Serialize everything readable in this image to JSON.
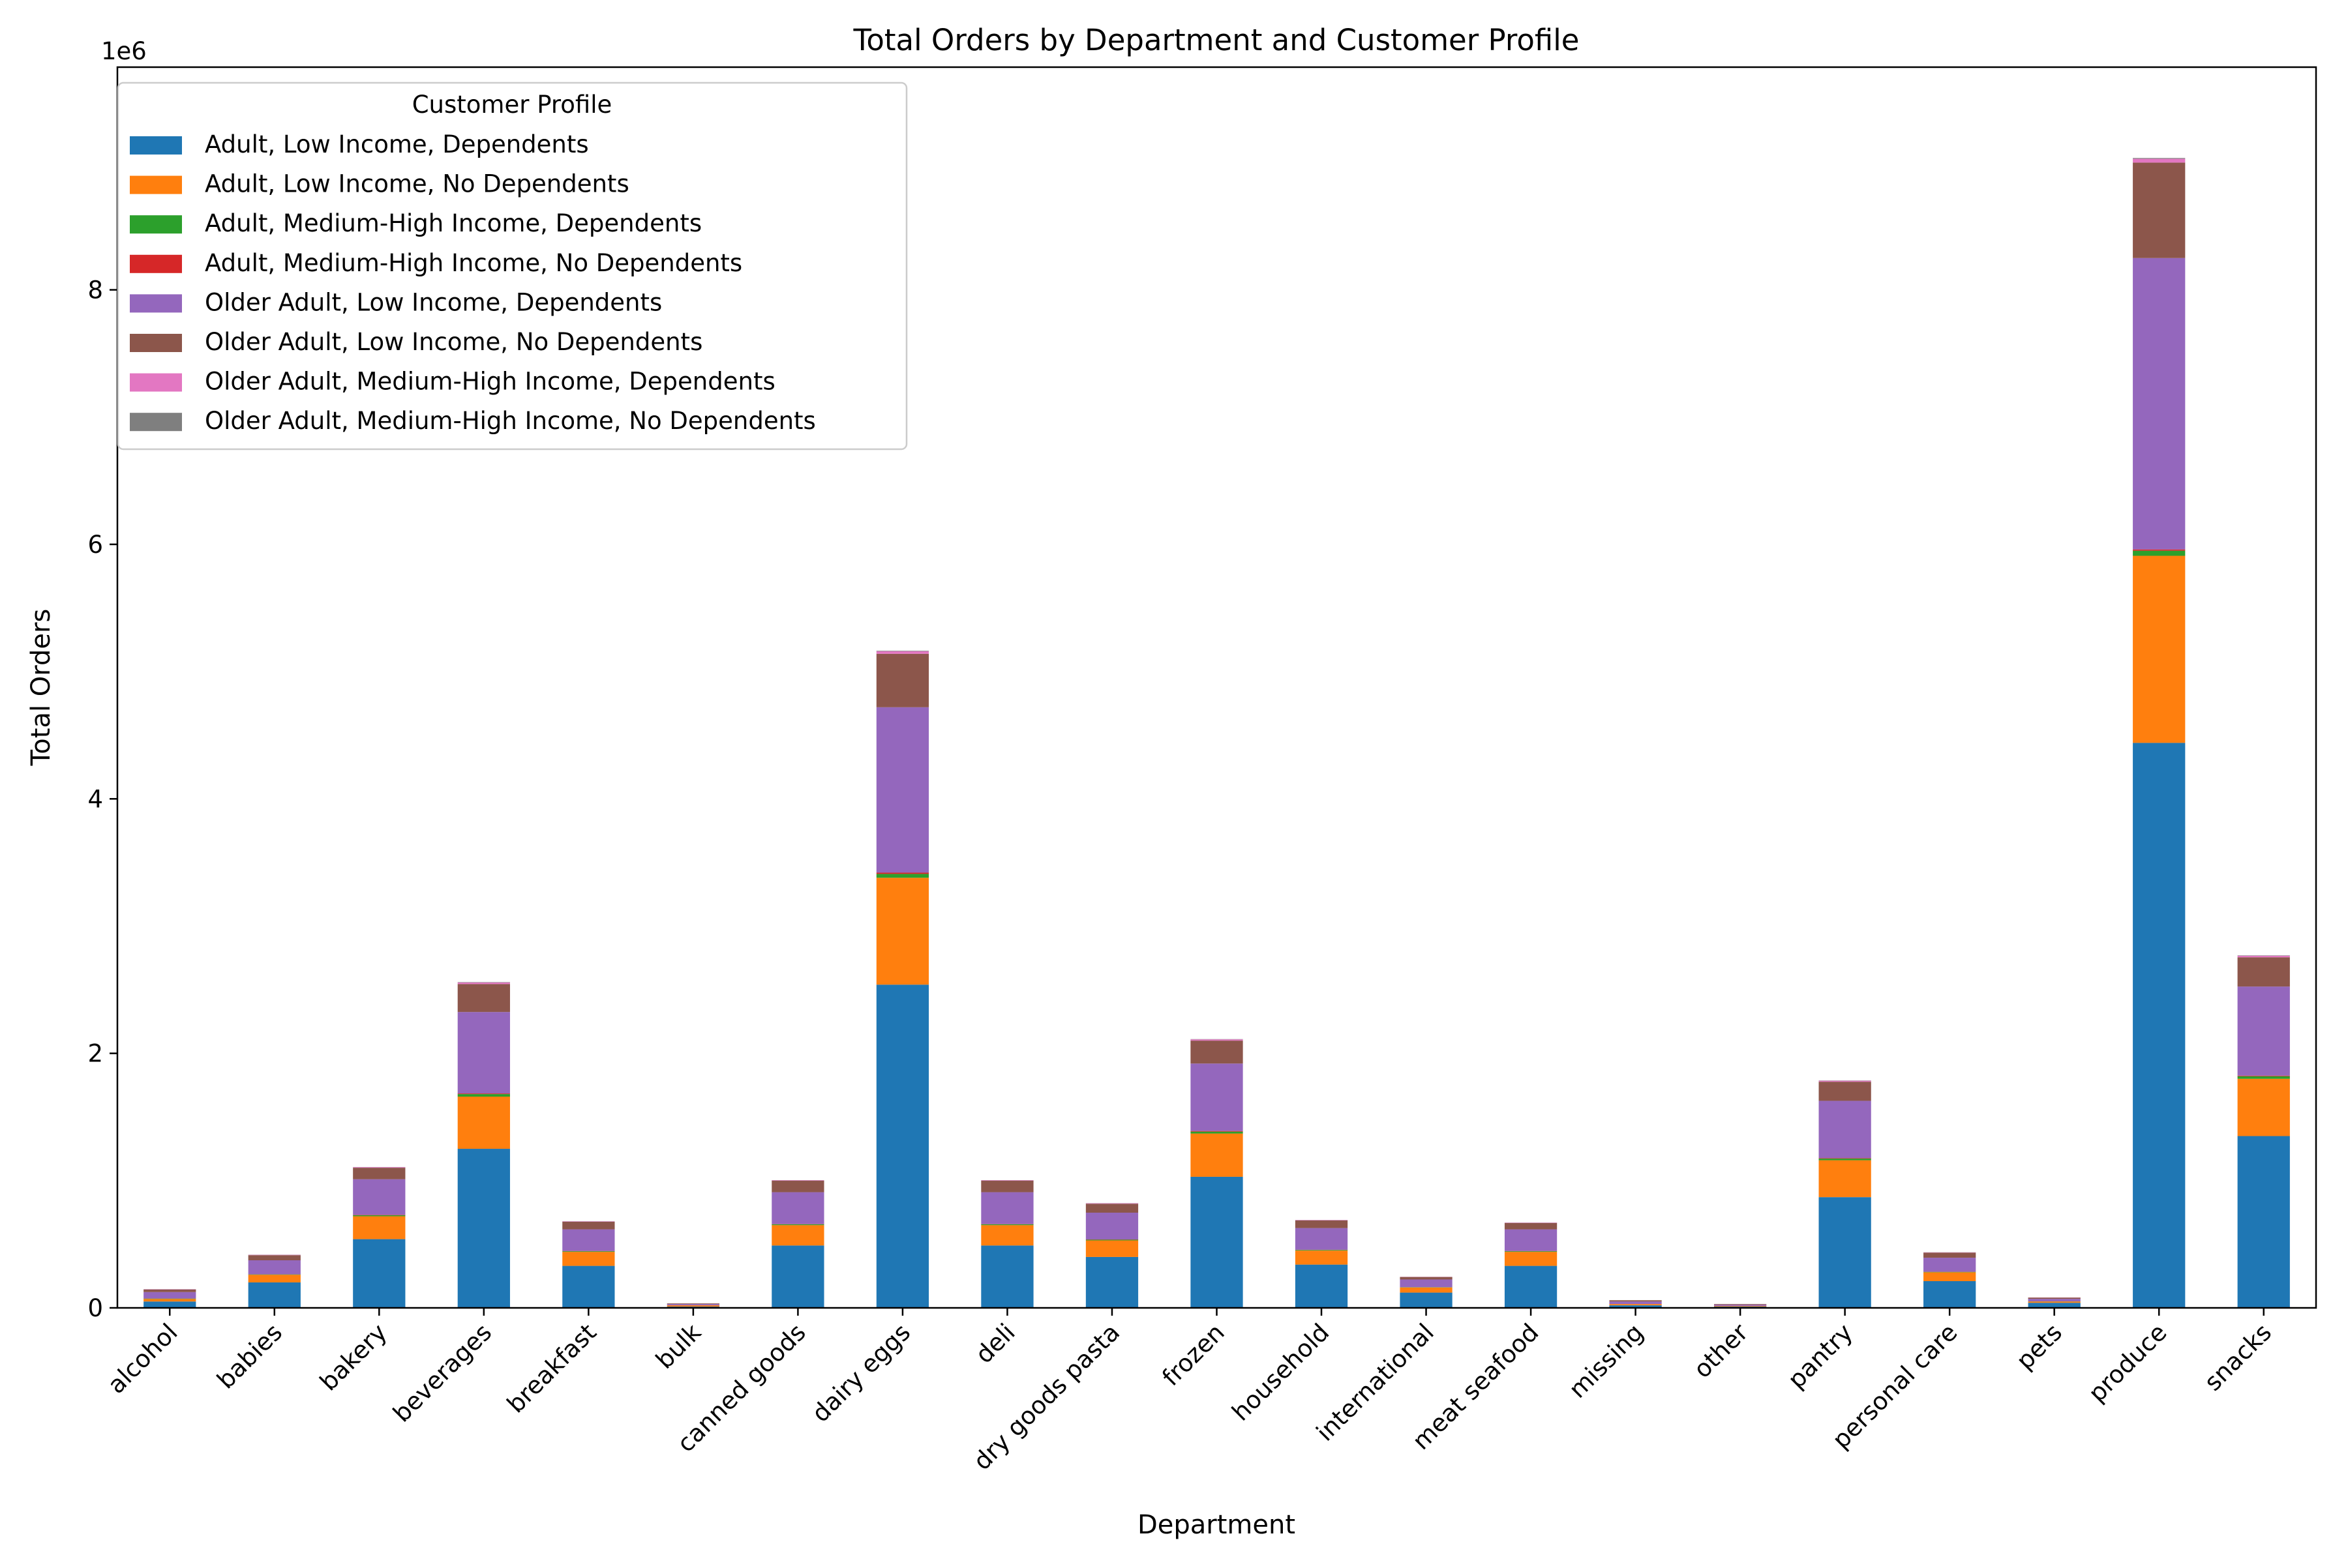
{
  "chart_data": {
    "type": "bar",
    "stacked": true,
    "title": "Total Orders by Department and Customer Profile",
    "xlabel": "Department",
    "ylabel": "Total Orders",
    "y_offset_text": "1e6",
    "ylim": [
      0,
      9.75
    ],
    "y_ticks": [
      "0",
      "2",
      "4",
      "6",
      "8"
    ],
    "y_tick_values": [
      0,
      2,
      4,
      6,
      8
    ],
    "grid": false,
    "legend": {
      "title": "Customer Profile",
      "placement": "top-left"
    },
    "categories": [
      "alcohol",
      "babies",
      "bakery",
      "beverages",
      "breakfast",
      "bulk",
      "canned goods",
      "dairy eggs",
      "deli",
      "dry goods pasta",
      "frozen",
      "household",
      "international",
      "meat seafood",
      "missing",
      "other",
      "pantry",
      "personal care",
      "pets",
      "produce",
      "snacks"
    ],
    "series": [
      {
        "name": "Adult, Low Income, Dependents",
        "color": "#1f77b4",
        "values": [
          0.05,
          0.2,
          0.54,
          1.25,
          0.33,
          0.01,
          0.49,
          2.54,
          0.49,
          0.4,
          1.03,
          0.34,
          0.12,
          0.33,
          0.02,
          0.01,
          0.87,
          0.21,
          0.04,
          4.44,
          1.35
        ]
      },
      {
        "name": "Adult, Low Income, No Dependents",
        "color": "#ff7f0e",
        "values": [
          0.02,
          0.06,
          0.18,
          0.41,
          0.11,
          0.01,
          0.16,
          0.84,
          0.16,
          0.13,
          0.34,
          0.11,
          0.04,
          0.11,
          0.01,
          0.005,
          0.29,
          0.07,
          0.01,
          1.47,
          0.45
        ]
      },
      {
        "name": "Adult, Medium-High Income, Dependents",
        "color": "#2ca02c",
        "values": [
          0.003,
          0.003,
          0.008,
          0.02,
          0.005,
          0.0,
          0.007,
          0.03,
          0.007,
          0.006,
          0.015,
          0.005,
          0.002,
          0.005,
          0.0,
          0.0,
          0.013,
          0.003,
          0.001,
          0.04,
          0.02
        ]
      },
      {
        "name": "Adult, Medium-High Income, No Dependents",
        "color": "#d62728",
        "values": [
          0.001,
          0.001,
          0.003,
          0.005,
          0.002,
          0.0,
          0.002,
          0.01,
          0.002,
          0.002,
          0.005,
          0.002,
          0.001,
          0.002,
          0.0,
          0.0,
          0.004,
          0.001,
          0.0,
          0.01,
          0.005
        ]
      },
      {
        "name": "Older Adult, Low Income, Dependents",
        "color": "#9467bd",
        "values": [
          0.05,
          0.11,
          0.28,
          0.64,
          0.17,
          0.01,
          0.25,
          1.3,
          0.25,
          0.21,
          0.53,
          0.17,
          0.06,
          0.17,
          0.02,
          0.01,
          0.45,
          0.11,
          0.02,
          2.29,
          0.7
        ]
      },
      {
        "name": "Older Adult, Low Income, No Dependents",
        "color": "#8c564b",
        "values": [
          0.02,
          0.04,
          0.09,
          0.22,
          0.06,
          0.005,
          0.09,
          0.42,
          0.09,
          0.07,
          0.18,
          0.06,
          0.02,
          0.05,
          0.01,
          0.005,
          0.15,
          0.04,
          0.01,
          0.75,
          0.23
        ]
      },
      {
        "name": "Older Adult, Medium-High Income, Dependents",
        "color": "#e377c2",
        "values": [
          0.002,
          0.003,
          0.005,
          0.012,
          0.003,
          0.0,
          0.004,
          0.02,
          0.004,
          0.004,
          0.01,
          0.003,
          0.001,
          0.003,
          0.0,
          0.0,
          0.008,
          0.002,
          0.001,
          0.03,
          0.012
        ]
      },
      {
        "name": "Older Adult, Medium-High Income, No Dependents",
        "color": "#7f7f7f",
        "values": [
          0.001,
          0.001,
          0.001,
          0.003,
          0.001,
          0.0,
          0.001,
          0.004,
          0.001,
          0.001,
          0.002,
          0.001,
          0.0,
          0.001,
          0.0,
          0.0,
          0.002,
          0.001,
          0.0,
          0.006,
          0.003
        ]
      }
    ]
  }
}
